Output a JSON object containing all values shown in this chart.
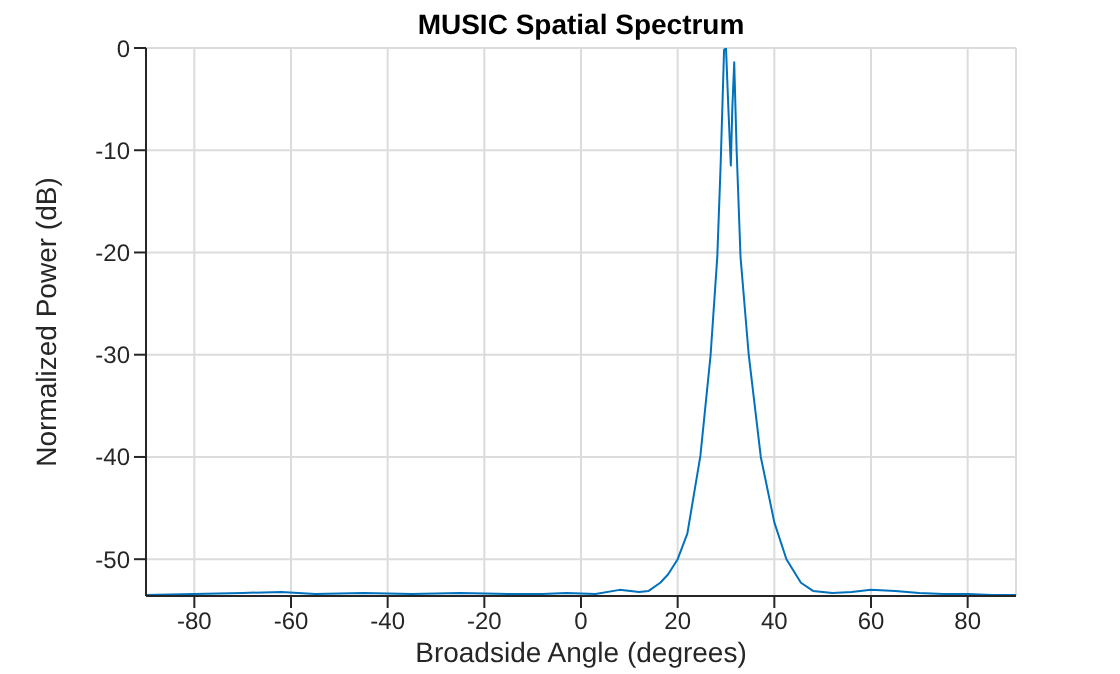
{
  "chart_data": {
    "type": "line",
    "title": "MUSIC Spatial Spectrum",
    "xlabel": "Broadside Angle (degrees)",
    "ylabel": "Normalized Power (dB)",
    "xlim": [
      -90,
      90
    ],
    "ylim": [
      -53.6,
      0
    ],
    "xticks": [
      -80,
      -60,
      -40,
      -20,
      0,
      20,
      40,
      60,
      80
    ],
    "yticks": [
      -50,
      -40,
      -30,
      -20,
      -10,
      0
    ],
    "grid": true,
    "marker": "none",
    "line_style": "solid",
    "series": [
      {
        "color": "#0072bd",
        "x": [
          -90,
          -80,
          -70,
          -62,
          -55,
          -45,
          -35,
          -25,
          -15,
          -8,
          -3,
          3,
          8,
          12,
          14,
          16.4,
          18,
          20,
          22,
          24.7,
          26.8,
          28.2,
          28.9,
          29.6,
          30,
          30.5,
          31,
          31.3,
          31.7,
          32.2,
          33,
          34.7,
          37.2,
          40,
          42.5,
          45.5,
          48,
          52,
          56,
          60,
          65,
          70,
          75,
          80,
          85,
          90
        ],
        "values": [
          -53.5,
          -53.4,
          -53.3,
          -53.2,
          -53.4,
          -53.3,
          -53.4,
          -53.3,
          -53.4,
          -53.4,
          -53.3,
          -53.4,
          -53.0,
          -53.2,
          -53.1,
          -52.3,
          -51.5,
          -50,
          -47.5,
          -39.9,
          -30.1,
          -20.4,
          -11.3,
          -0.2,
          0,
          -6,
          -11.5,
          -6,
          -1.4,
          -10,
          -20.4,
          -30,
          -40,
          -46.4,
          -50,
          -52.3,
          -53.1,
          -53.3,
          -53.2,
          -53.0,
          -53.1,
          -53.3,
          -53.4,
          -53.4,
          -53.5,
          -53.5
        ]
      }
    ]
  }
}
